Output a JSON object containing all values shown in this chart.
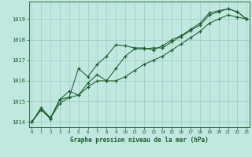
{
  "title": "Graphe pression niveau de la mer (hPa)",
  "background_color": "#c0e8e0",
  "grid_color": "#98ccc4",
  "line_color": "#1a5c2a",
  "text_color": "#1a5c2a",
  "x_values": [
    0,
    1,
    2,
    3,
    4,
    5,
    6,
    7,
    8,
    9,
    10,
    11,
    12,
    13,
    14,
    15,
    16,
    17,
    18,
    19,
    20,
    21,
    22,
    23
  ],
  "line1": [
    1014.0,
    1014.6,
    1014.2,
    1014.9,
    1015.2,
    1016.6,
    1016.2,
    1016.8,
    1017.2,
    1017.75,
    1017.7,
    1017.6,
    1017.6,
    1017.5,
    1017.7,
    1018.0,
    1018.2,
    1018.5,
    1018.8,
    1019.3,
    1019.4,
    1019.5,
    1019.35,
    1019.0
  ],
  "line2": [
    1014.0,
    1014.7,
    1014.2,
    1015.1,
    1015.5,
    1015.3,
    1015.9,
    1016.3,
    1016.0,
    1016.6,
    1017.2,
    1017.55,
    1017.55,
    1017.6,
    1017.6,
    1017.9,
    1018.15,
    1018.45,
    1018.7,
    1019.2,
    1019.35,
    1019.5,
    1019.35,
    1019.0
  ],
  "line3": [
    1014.0,
    1014.6,
    1014.15,
    1015.1,
    1015.2,
    1015.3,
    1015.7,
    1016.0,
    1016.0,
    1016.0,
    1016.2,
    1016.5,
    1016.8,
    1017.0,
    1017.2,
    1017.5,
    1017.8,
    1018.1,
    1018.4,
    1018.8,
    1019.0,
    1019.2,
    1019.1,
    1019.0
  ],
  "ylim": [
    1013.75,
    1019.85
  ],
  "yticks": [
    1014,
    1015,
    1016,
    1017,
    1018,
    1019
  ],
  "xlim": [
    -0.3,
    23.3
  ]
}
